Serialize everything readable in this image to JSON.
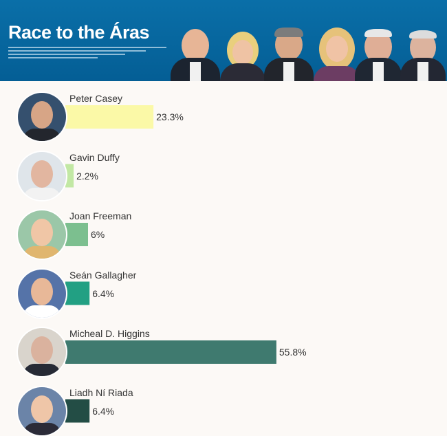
{
  "banner": {
    "title": "Race to the Áras"
  },
  "colors": {
    "banner_bg": "#0568a1",
    "background": "#fcf9f6",
    "text": "#333333"
  },
  "chart_data": {
    "type": "bar",
    "orientation": "horizontal",
    "title": "Race to the Áras",
    "categories": [
      "Peter Casey",
      "Gavin Duffy",
      "Joan Freeman",
      "Seán Gallagher",
      "Micheal D. Higgins",
      "Liadh Ní Riada"
    ],
    "values": [
      23.3,
      2.2,
      6,
      6.4,
      55.8,
      6.4
    ],
    "value_labels": [
      "23.3%",
      "2.2%",
      "6%",
      "6.4%",
      "55.8%",
      "6.4%"
    ],
    "colors": [
      "#fbf9a7",
      "#c2e8a4",
      "#7cbf8f",
      "#22a083",
      "#3f7a6f",
      "#234d45"
    ],
    "xlim": [
      0,
      100
    ],
    "xlabel": "",
    "ylabel": "",
    "grid": false,
    "legend": "none"
  }
}
